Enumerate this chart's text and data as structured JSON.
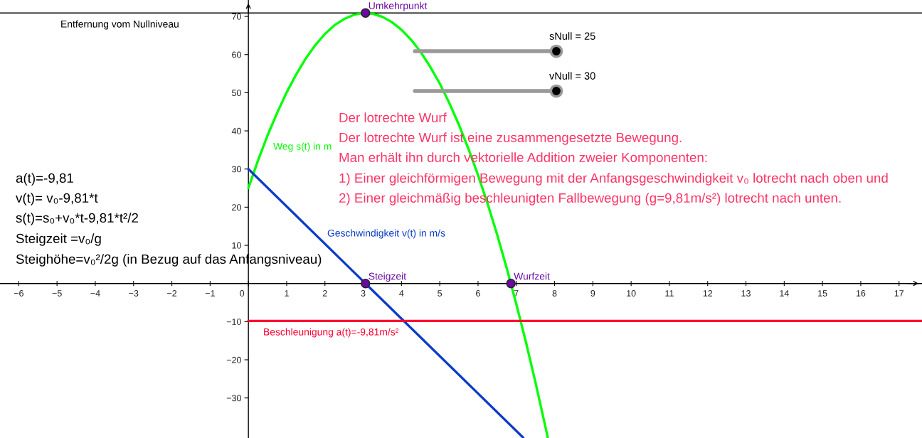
{
  "chart_data": {
    "type": "line",
    "xlim": [
      -6.49,
      17.6
    ],
    "ylim": [
      -40.5,
      74.3
    ],
    "xticks": [
      {
        "value": -6,
        "label": "−6"
      },
      {
        "value": -5,
        "label": "−5"
      },
      {
        "value": -4,
        "label": "−4"
      },
      {
        "value": -3,
        "label": "−3"
      },
      {
        "value": -2,
        "label": "−2"
      },
      {
        "value": -1,
        "label": "−1"
      },
      0,
      1,
      2,
      3,
      4,
      5,
      6,
      7,
      8,
      9,
      10,
      11,
      12,
      13,
      14,
      15,
      16,
      17
    ],
    "yticks": [
      {
        "value": -30,
        "label": "−30"
      },
      {
        "value": -20,
        "label": "−20"
      },
      {
        "value": -10,
        "label": "−10"
      },
      10,
      20,
      30,
      40,
      50,
      60,
      70
    ],
    "series": [
      {
        "name": "Weg s(t) in m",
        "color": "#00ff00",
        "x": [
          0,
          0.25,
          0.5,
          0.75,
          1,
          1.25,
          1.5,
          1.75,
          2,
          2.25,
          2.5,
          2.75,
          3,
          3.25,
          3.5,
          3.75,
          4,
          4.25,
          4.5,
          4.75,
          5,
          5.25,
          5.5,
          5.75,
          6,
          6.25,
          6.5,
          6.75,
          7,
          7.25,
          7.5,
          7.75,
          7.82
        ],
        "values": [
          25,
          32.2,
          38.8,
          44.7,
          50.1,
          54.8,
          59.0,
          62.5,
          65.4,
          67.7,
          69.3,
          70.4,
          70.9,
          70.7,
          69.9,
          68.5,
          66.5,
          63.9,
          60.7,
          56.8,
          52.4,
          47.3,
          41.6,
          35.3,
          28.4,
          20.9,
          12.8,
          4.0,
          -5.4,
          -15.3,
          -25.9,
          -37.1,
          -40.3
        ]
      },
      {
        "name": "Geschwindigkeit v(t) in m/s",
        "color": "#0a3cc8",
        "x": [
          0,
          7.18
        ],
        "values": [
          30,
          -40.4
        ]
      },
      {
        "name": "Beschleunigung a(t)=-9,81m/s²",
        "color": "#ff0033",
        "x": [
          0,
          17.6
        ],
        "values": [
          -9.81,
          -9.81
        ]
      },
      {
        "type": "scatter",
        "name": "Umkehrpunkt",
        "marker": "circle",
        "color": "#6a0aa0",
        "x": [
          3.06
        ],
        "values": [
          70.9
        ]
      },
      {
        "type": "scatter",
        "name": "Steigzeit",
        "marker": "circle",
        "color": "#6a0aa0",
        "x": [
          3.06
        ],
        "values": [
          0
        ]
      },
      {
        "type": "scatter",
        "name": "Wurfzeit",
        "marker": "circle",
        "color": "#6a0aa0",
        "x": [
          6.86
        ],
        "values": [
          0
        ]
      }
    ],
    "ref_lines": [
      {
        "axis": "y",
        "value": 70.9,
        "color": "#000000"
      }
    ],
    "annotations": [
      "Entfernung vom Nullniveau",
      "a(t)=-9,81",
      "v(t)= v₀-9,81*t",
      "s(t)=s₀+v₀*t-9,81*t²/2",
      "Steigzeit =v₀/g",
      "Steighöhe=v₀²/2g (in Bezug auf das Anfangsniveau)",
      "Der lotrechte Wurf",
      "Der lotrechte Wurf ist eine zusammengesetzte Bewegung.",
      "Man erhält ihn durch vektorielle Addition zweier Komponenten:",
      "1) Einer gleichförmigen Bewegung mit der Anfangsgeschwindigkeit v₀ lotrecht nach oben und",
      "2) Einer gleichmäßig beschleunigten Fallbewegung (g=9,81m/s²) lotrecht nach unten.",
      "sNull = 25",
      "vNull = 30"
    ]
  }
}
